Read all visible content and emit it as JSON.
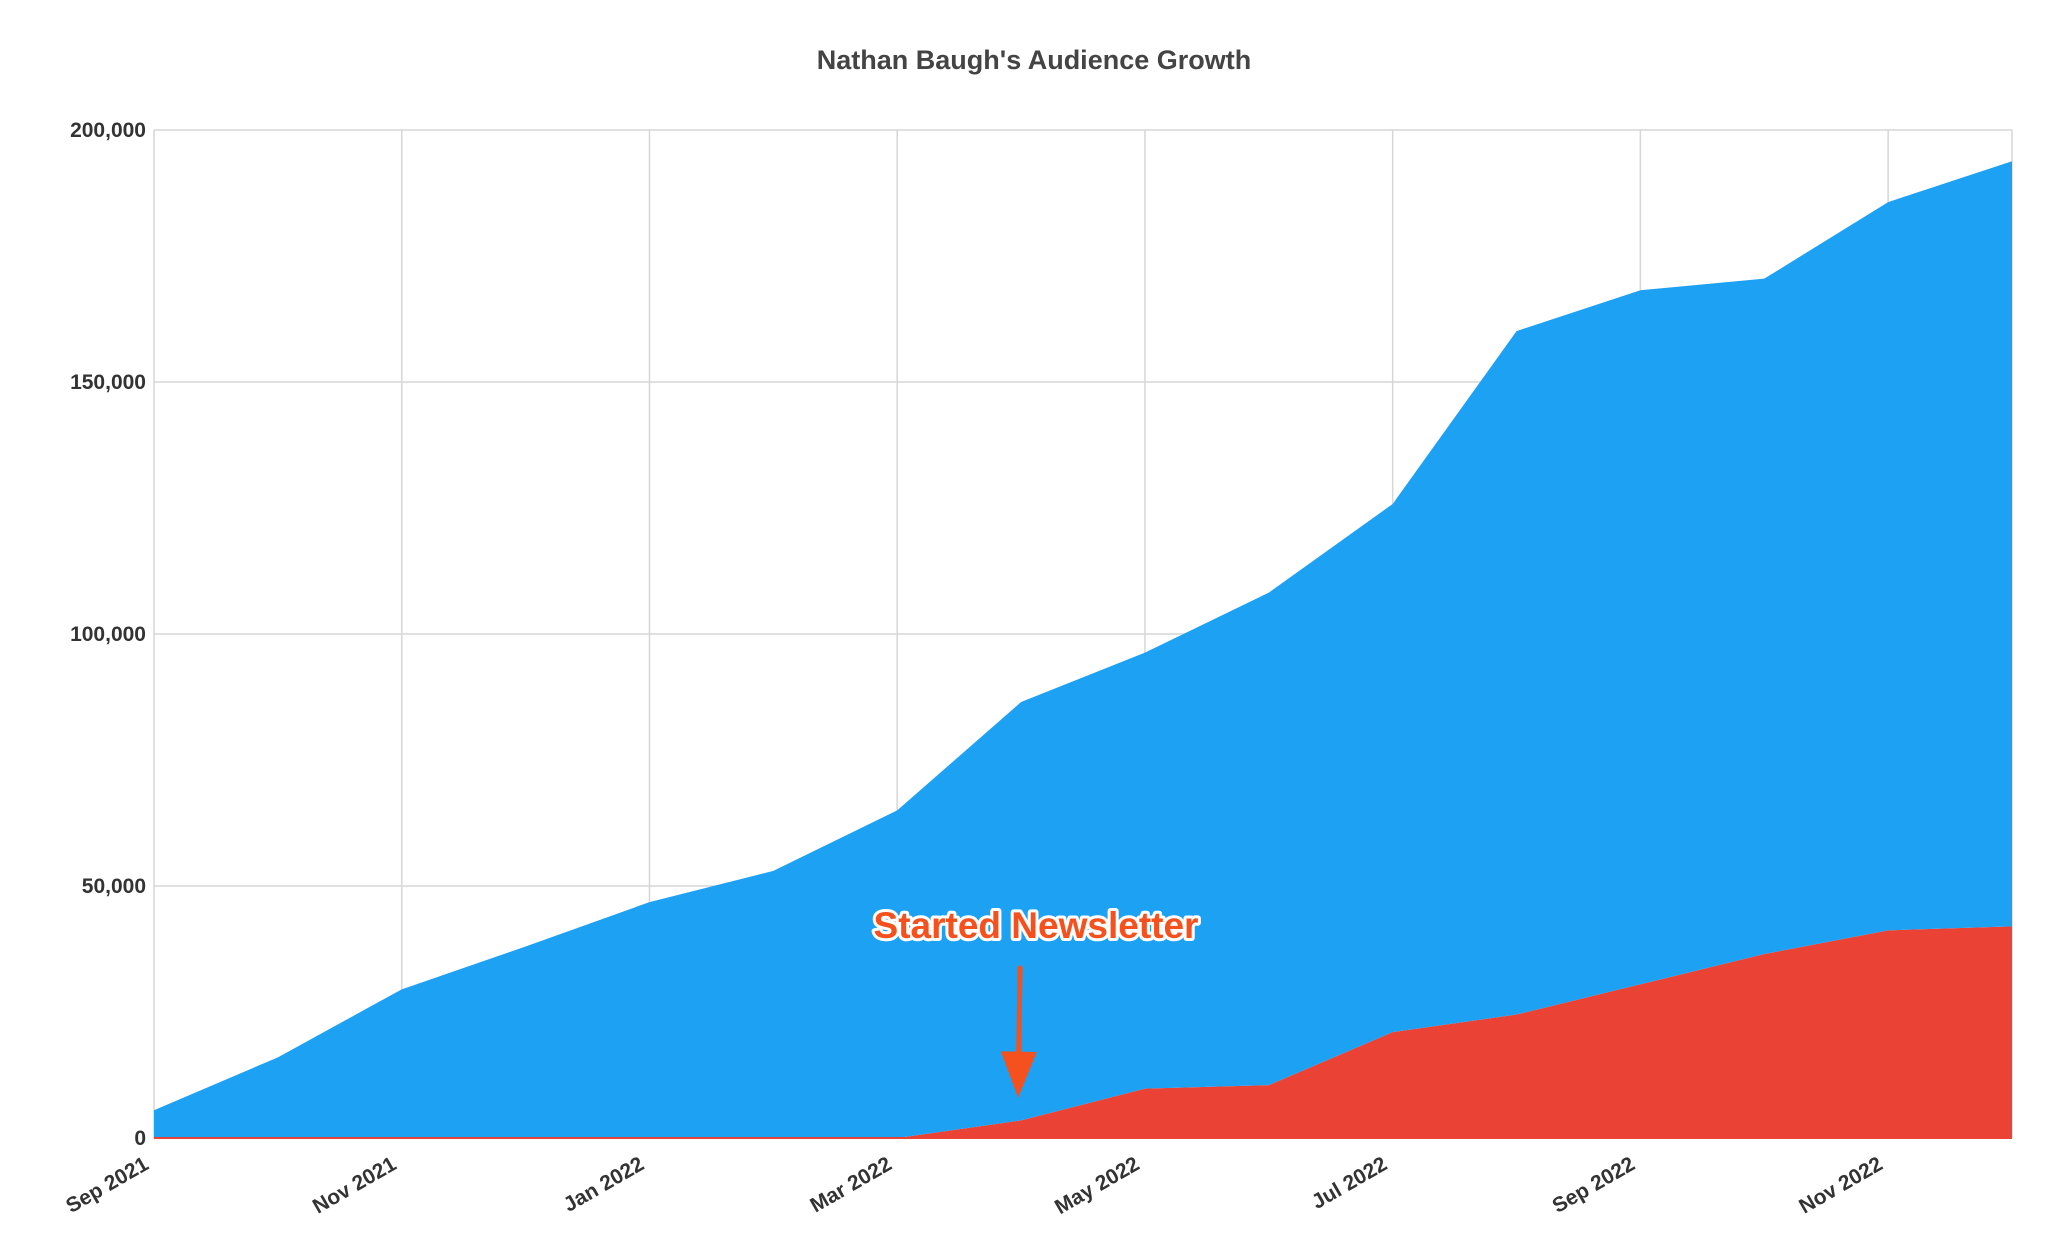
{
  "chart_data": {
    "type": "area",
    "title": "Nathan Baugh's Audience Growth",
    "xlabel": "",
    "ylabel": "",
    "stacked": true,
    "grid": true,
    "legend": "none",
    "x": [
      "Sep 2021",
      "Oct 2021",
      "Nov 2021",
      "Dec 2021",
      "Jan 2022",
      "Feb 2022",
      "Mar 2022",
      "Apr 2022",
      "May 2022",
      "Jun 2022",
      "Jul 2022",
      "Aug 2022",
      "Sep 2022",
      "Oct 2022",
      "Nov 2022",
      "Dec 2022"
    ],
    "x_tick_labels": [
      "Sep 2021",
      "Nov 2021",
      "Jan 2022",
      "Mar 2022",
      "May 2022",
      "Jul 2022",
      "Sep 2022",
      "Nov 2022"
    ],
    "ylim": [
      0,
      200000
    ],
    "y_ticks": [
      0,
      50000,
      100000,
      150000,
      200000
    ],
    "y_tick_labels": [
      "0",
      "50,000",
      "100,000",
      "150,000",
      "200,000"
    ],
    "series": [
      {
        "color": "#ea4335",
        "values": [
          0,
          0,
          0,
          0,
          0,
          0,
          0,
          3500,
          9800,
          10500,
          21000,
          24500,
          30500,
          36500,
          41200,
          42000
        ]
      },
      {
        "color": "#1da1f2",
        "values": [
          5500,
          16000,
          29500,
          38000,
          46800,
          53000,
          65000,
          83000,
          86500,
          97700,
          104800,
          135600,
          137700,
          134000,
          144500,
          151800
        ]
      }
    ],
    "annotations": [
      {
        "text": "Started Newsletter",
        "color": "#f4511e",
        "points_to": {
          "x": "Apr 2022",
          "y": 8000
        }
      }
    ]
  }
}
